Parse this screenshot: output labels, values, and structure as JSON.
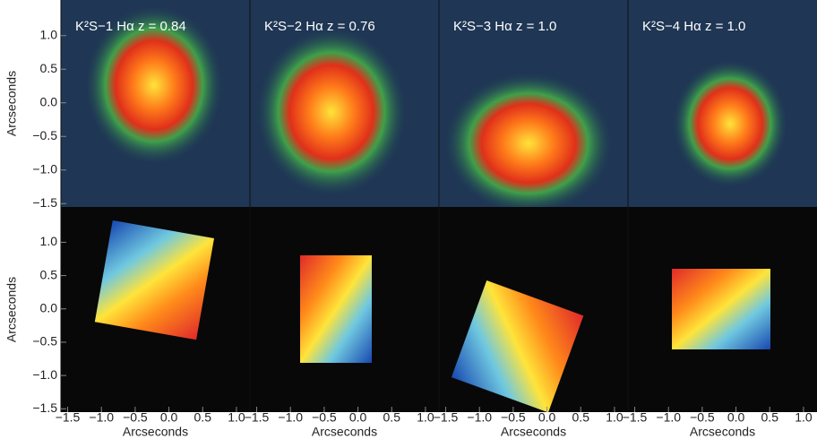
{
  "chart_data": {
    "type": "image",
    "panels": [
      {
        "title": "K²S−1 Hα z = 0.84"
      },
      {
        "title": "K²S−2 Hα z = 0.76"
      },
      {
        "title": "K²S−3 Hα z = 1.0"
      },
      {
        "title": "K²S−4 Hα z = 1.0"
      }
    ],
    "xlabel": "Arcseconds",
    "ylabel": "Arcseconds",
    "xlim": [
      -1.6,
      1.2
    ],
    "ylim": [
      -1.55,
      1.53
    ],
    "xticks": [
      {
        "value": -1.5,
        "label": "−1.5"
      },
      {
        "value": -1.0,
        "label": "−1.0"
      },
      {
        "value": -0.5,
        "label": "−0.5"
      },
      {
        "value": 0.0,
        "label": "0.0"
      },
      {
        "value": 0.5,
        "label": "0.5"
      },
      {
        "value": 1.0,
        "label": "1.0"
      }
    ],
    "yticks": [
      {
        "value": 1.0,
        "label": "1.0"
      },
      {
        "value": 0.5,
        "label": "0.5"
      },
      {
        "value": 0.0,
        "label": "0.0"
      },
      {
        "value": -0.5,
        "label": "−0.5"
      },
      {
        "value": -1.0,
        "label": "−1.0"
      },
      {
        "value": -1.5,
        "label": "−1.5"
      }
    ]
  }
}
